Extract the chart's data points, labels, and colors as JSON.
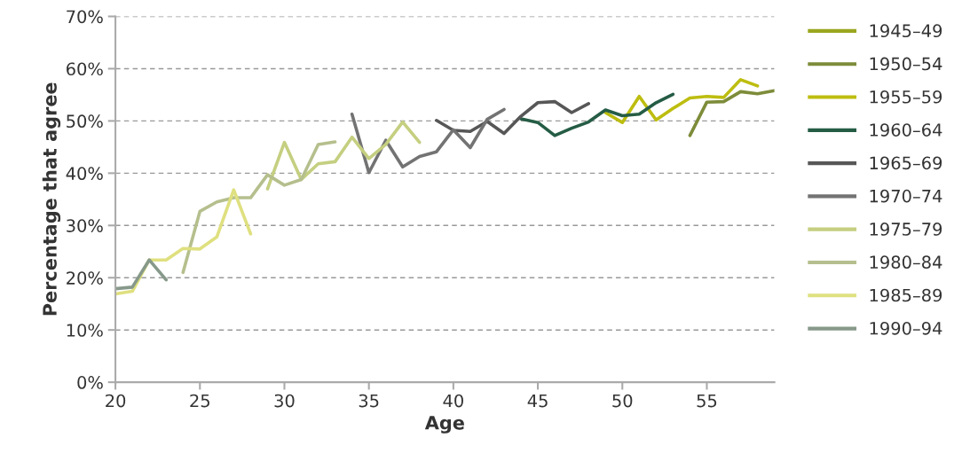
{
  "chart_data": {
    "type": "line",
    "xlabel": "Age",
    "ylabel": "Percentage that agree",
    "xlim": [
      20,
      59
    ],
    "xticks": [
      20,
      25,
      30,
      35,
      40,
      45,
      50,
      55
    ],
    "ylim": [
      0,
      70
    ],
    "yticks": [
      {
        "value": 0,
        "label": "0%"
      },
      {
        "value": 10,
        "label": "10%"
      },
      {
        "value": 20,
        "label": "20%"
      },
      {
        "value": 30,
        "label": "30%"
      },
      {
        "value": 40,
        "label": "40%"
      },
      {
        "value": 50,
        "label": "50%"
      },
      {
        "value": 60,
        "label": "60%"
      },
      {
        "value": 70,
        "label": "70%"
      }
    ],
    "grid": "y",
    "legend": "right",
    "line_style": "solid",
    "marker": "none",
    "series": [
      {
        "name": "1945–49",
        "color": "#9aa61f"
      },
      {
        "name": "1950–54",
        "color": "#7d8c3a",
        "x": [
          54,
          55,
          56,
          57,
          58,
          59
        ],
        "values": [
          47.2,
          53.6,
          53.7,
          55.6,
          55.2,
          55.8
        ]
      },
      {
        "name": "1955–59",
        "color": "#bdbd10",
        "x": [
          49,
          50,
          51,
          52,
          53,
          54,
          55,
          56,
          57,
          58
        ],
        "values": [
          51.6,
          49.7,
          54.7,
          50.2,
          52.4,
          54.4,
          54.7,
          54.5,
          57.9,
          56.7
        ]
      },
      {
        "name": "1960–64",
        "color": "#255c45",
        "x": [
          44,
          45,
          46,
          47,
          48,
          49,
          50,
          51,
          52,
          53
        ],
        "values": [
          50.4,
          49.7,
          47.2,
          48.6,
          49.8,
          52.1,
          51.0,
          51.3,
          53.5,
          55.1
        ]
      },
      {
        "name": "1965–69",
        "color": "#575757",
        "x": [
          39,
          40,
          41,
          42,
          43,
          44,
          45,
          46,
          47,
          48
        ],
        "values": [
          50.1,
          48.2,
          48.0,
          49.9,
          47.6,
          50.9,
          53.5,
          53.7,
          51.6,
          53.3
        ]
      },
      {
        "name": "1970–74",
        "color": "#737373",
        "x": [
          34,
          35,
          36,
          37,
          38,
          39,
          40,
          41,
          42,
          43
        ],
        "values": [
          51.3,
          40.1,
          46.3,
          41.2,
          43.2,
          44.1,
          48.3,
          44.9,
          50.3,
          52.2
        ]
      },
      {
        "name": "1975–79",
        "color": "#c5cf80",
        "x": [
          29,
          30,
          31,
          32,
          33,
          34,
          35,
          36,
          37,
          38
        ],
        "values": [
          37.0,
          45.9,
          38.8,
          41.8,
          42.2,
          46.9,
          42.8,
          45.5,
          49.8,
          45.9
        ]
      },
      {
        "name": "1980–84",
        "color": "#b5bf8d",
        "x": [
          24,
          25,
          26,
          27,
          28,
          29,
          30,
          31,
          32,
          33
        ],
        "values": [
          21.0,
          32.7,
          34.5,
          35.3,
          35.3,
          39.7,
          37.7,
          38.8,
          45.5,
          46.0
        ]
      },
      {
        "name": "1985–89",
        "color": "#dfe07f",
        "x": [
          20,
          21,
          22,
          23,
          24,
          25,
          26,
          27,
          28
        ],
        "values": [
          16.9,
          17.4,
          23.4,
          23.4,
          25.6,
          25.5,
          27.8,
          36.8,
          28.4
        ]
      },
      {
        "name": "1990–94",
        "color": "#87998a",
        "x": [
          20,
          21,
          22,
          23
        ],
        "values": [
          17.9,
          18.2,
          23.4,
          19.6
        ]
      }
    ]
  }
}
